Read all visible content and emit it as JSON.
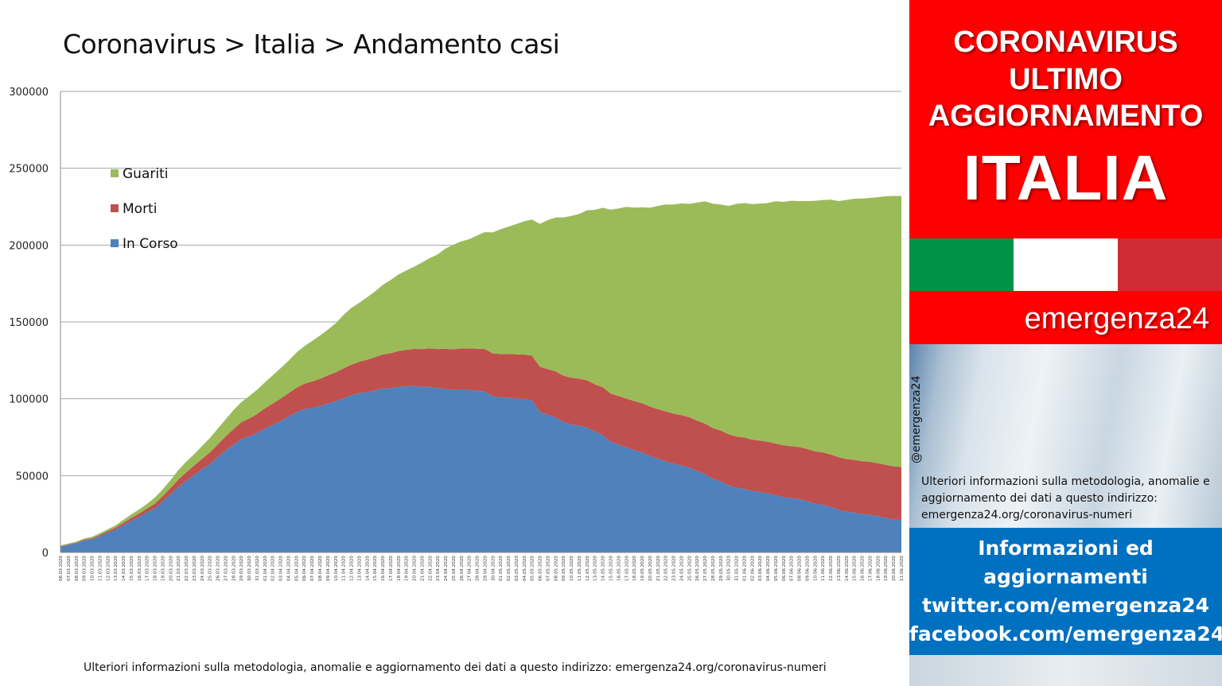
{
  "chart_title": "Coronavirus > Italia > Andamento casi",
  "footer_note": "Ulteriori informazioni sulla metodologia, anomalie e aggiornamento dei dati a questo indirizzo: emergenza24.org/coronavirus-numeri",
  "side_panel": {
    "line1": "CORONAVIRUS",
    "line2": "ULTIMO",
    "line3": "AGGIORNAMENTO",
    "line4": "ITALIA",
    "brand": "emergenza24",
    "handle": "@emergenza24",
    "note": "Ulteriori informazioni sulla metodologia, anomalie e aggiornamento dei dati a questo indirizzo: emergenza24.org/coronavirus-numeri",
    "info_line1": "Informazioni ed",
    "info_line2": "aggiornamenti",
    "info_line3": "twitter.com/emergenza24",
    "info_line4": "facebook.com/emergenza24",
    "flag_colors": [
      "#009246",
      "#ffffff",
      "#ce2b37"
    ],
    "red": "#fe0000",
    "blue": "#0070c0"
  },
  "chart_data": {
    "type": "area",
    "stacked": true,
    "title": "Coronavirus > Italia > Andamento casi",
    "xlabel": "",
    "ylabel": "",
    "ylim": [
      0,
      300000
    ],
    "yticks": [
      0,
      50000,
      100000,
      150000,
      200000,
      250000,
      300000
    ],
    "grid": true,
    "legend_position": "top-left",
    "colors": {
      "In Corso": "#4f81bd",
      "Morti": "#c0504d",
      "Guariti": "#9bbb59"
    },
    "x": [
      "06.03.2020",
      "07.03.2020",
      "08.03.2020",
      "09.03.2020",
      "10.03.2020",
      "11.03.2020",
      "12.03.2020",
      "13.03.2020",
      "14.03.2020",
      "15.03.2020",
      "16.03.2020",
      "17.03.2020",
      "18.03.2020",
      "19.03.2020",
      "20.03.2020",
      "21.03.2020",
      "22.03.2020",
      "23.03.2020",
      "24.03.2020",
      "25.03.2020",
      "26.03.2020",
      "27.03.2020",
      "28.03.2020",
      "29.03.2020",
      "30.03.2020",
      "31.03.2020",
      "01.04.2020",
      "02.04.2020",
      "03.04.2020",
      "04.04.2020",
      "05.04.2020",
      "06.04.2020",
      "07.04.2020",
      "08.04.2020",
      "09.04.2020",
      "10.04.2020",
      "11.04.2020",
      "12.04.2020",
      "13.04.2020",
      "14.04.2020",
      "15.04.2020",
      "16.04.2020",
      "17.04.2020",
      "18.04.2020",
      "19.04.2020",
      "20.04.2020",
      "21.04.2020",
      "22.04.2020",
      "23.04.2020",
      "24.04.2020",
      "25.04.2020",
      "26.04.2020",
      "27.04.2020",
      "28.04.2020",
      "29.04.2020",
      "30.04.2020",
      "01.05.2020",
      "02.05.2020",
      "03.05.2020",
      "04.05.2020",
      "05.05.2020",
      "06.05.2020",
      "07.05.2020",
      "08.05.2020",
      "09.05.2020",
      "10.05.2020",
      "11.05.2020",
      "12.05.2020",
      "13.05.2020",
      "14.05.2020",
      "15.05.2020",
      "16.05.2020",
      "17.05.2020",
      "18.05.2020",
      "19.05.2020",
      "20.05.2020",
      "21.05.2020",
      "22.05.2020",
      "23.05.2020",
      "24.05.2020",
      "25.05.2020",
      "26.05.2020",
      "27.05.2020",
      "28.05.2020",
      "29.05.2020",
      "30.05.2020",
      "31.05.2020",
      "01.06.2020",
      "02.06.2020",
      "03.06.2020",
      "04.06.2020",
      "05.06.2020",
      "06.06.2020",
      "07.06.2020",
      "08.06.2020",
      "09.06.2020",
      "10.06.2020",
      "11.06.2020",
      "12.06.2020",
      "13.06.2020",
      "14.06.2020",
      "15.06.2020",
      "16.06.2020",
      "17.06.2020",
      "18.06.2020",
      "19.06.2020",
      "20.06.2020",
      "21.06.2020"
    ],
    "series": [
      {
        "name": "In Corso",
        "values": [
          3900,
          5000,
          6000,
          7900,
          8500,
          10600,
          12800,
          14900,
          17800,
          20600,
          23100,
          26100,
          28700,
          33200,
          37900,
          42700,
          46600,
          50400,
          54000,
          57500,
          62000,
          66400,
          70100,
          73900,
          75500,
          77600,
          80600,
          83000,
          85400,
          88300,
          91200,
          93200,
          94100,
          95300,
          96900,
          98300,
          100300,
          102300,
          103600,
          104300,
          105400,
          106600,
          106900,
          107800,
          108200,
          108300,
          107700,
          107700,
          106800,
          106500,
          105800,
          106100,
          105800,
          105200,
          104700,
          101600,
          100900,
          100700,
          100200,
          99900,
          99000,
          91500,
          89600,
          87900,
          84800,
          83300,
          82500,
          81300,
          78500,
          76400,
          72100,
          70200,
          68400,
          66600,
          65100,
          62800,
          60900,
          59300,
          57800,
          56600,
          55300,
          52900,
          50900,
          47900,
          46200,
          43700,
          42100,
          41400,
          40000,
          39300,
          38400,
          37200,
          36000,
          35300,
          34700,
          33400,
          31800,
          31000,
          29600,
          27800,
          26500,
          25900,
          25000,
          24600,
          23600,
          22500,
          21500,
          20900
        ]
      },
      {
        "name": "Morti",
        "values": [
          200,
          230,
          370,
          460,
          630,
          830,
          1020,
          1270,
          1440,
          1810,
          2160,
          2500,
          2980,
          3410,
          4030,
          4830,
          5480,
          6080,
          6820,
          7500,
          8160,
          9130,
          10020,
          10780,
          11590,
          12430,
          13160,
          13920,
          14680,
          15360,
          15890,
          16520,
          17130,
          17670,
          18280,
          18850,
          19470,
          19900,
          20470,
          21070,
          21650,
          22170,
          22750,
          23230,
          23660,
          24120,
          24650,
          25090,
          25550,
          25970,
          26380,
          26640,
          26980,
          27360,
          27680,
          27970,
          28240,
          28480,
          28710,
          28880,
          29080,
          29320,
          29680,
          29960,
          30200,
          30400,
          30560,
          30740,
          30910,
          31110,
          31370,
          31610,
          31760,
          31910,
          32010,
          32160,
          32330,
          32490,
          32620,
          32740,
          32780,
          32880,
          32960,
          33070,
          33140,
          33230,
          33340,
          33410,
          33480,
          33530,
          33600,
          33690,
          33770,
          33850,
          33900,
          33960,
          34040,
          34110,
          34170,
          34220,
          34300,
          34340,
          34370,
          34410,
          34450,
          34510,
          34560,
          34610
        ]
      },
      {
        "name": "Guariti",
        "values": [
          520,
          590,
          620,
          720,
          1000,
          1050,
          1250,
          1440,
          1970,
          2340,
          2750,
          2940,
          4030,
          4440,
          5130,
          6070,
          7020,
          7430,
          8330,
          9370,
          10360,
          10950,
          12380,
          13030,
          14620,
          15730,
          16850,
          18270,
          19760,
          21010,
          22840,
          24400,
          26320,
          28100,
          29700,
          31900,
          34700,
          36900,
          38300,
          40600,
          42700,
          45300,
          47600,
          49900,
          51600,
          53500,
          56300,
          58800,
          61600,
          65300,
          68100,
          69700,
          71100,
          73700,
          76100,
          78700,
          81200,
          82800,
          84800,
          86700,
          88500,
          93000,
          97000,
          100100,
          103000,
          105300,
          107200,
          110600,
          113500,
          116800,
          119600,
          122000,
          124700,
          125900,
          127500,
          129400,
          132200,
          134600,
          136000,
          137800,
          138700,
          141900,
          144600,
          146000,
          147100,
          148500,
          151400,
          152500,
          153200,
          154200,
          155400,
          157600,
          158400,
          159700,
          160000,
          161300,
          163000,
          164200,
          165800,
          166600,
          168600,
          169900,
          170900,
          171700,
          173100,
          174800,
          175900,
          176400
        ]
      }
    ]
  }
}
